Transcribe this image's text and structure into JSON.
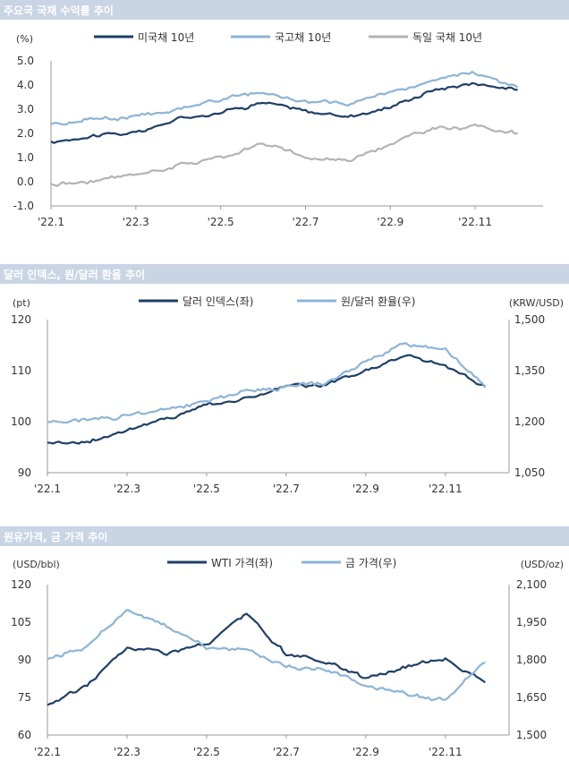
{
  "colors": {
    "dark": "#1f3f66",
    "light": "#8db4d6",
    "gray": "#b3b3b3",
    "titlebar": "#c9d4e4"
  },
  "chart_data": [
    {
      "type": "line",
      "title": "주요국 국채 수익률 추이",
      "ylabel": "(%)",
      "ylim": [
        -1.0,
        5.0
      ],
      "yticks": [
        "5.0",
        "4.0",
        "3.0",
        "2.0",
        "1.0",
        "0.0",
        "-1.0"
      ],
      "xticks": [
        "'22.1",
        "'22.3",
        "'22.5",
        "'22.7",
        "'22.9",
        "'22.11"
      ],
      "x": [
        "'22.1",
        "'22.2",
        "'22.3",
        "'22.4",
        "'22.5",
        "'22.6",
        "'22.7",
        "'22.8",
        "'22.9",
        "'22.10",
        "'22.11",
        "'22.12"
      ],
      "series": [
        {
          "name": "미국채 10년",
          "color": "dark",
          "values": [
            1.6,
            1.95,
            2.0,
            2.6,
            2.9,
            3.3,
            2.9,
            2.7,
            3.1,
            3.8,
            4.1,
            3.8
          ]
        },
        {
          "name": "국고채 10년",
          "color": "light",
          "values": [
            2.4,
            2.6,
            2.7,
            3.0,
            3.4,
            3.7,
            3.3,
            3.2,
            3.7,
            4.2,
            4.5,
            3.9
          ]
        },
        {
          "name": "독일 국채 10년",
          "color": "gray",
          "values": [
            -0.1,
            0.0,
            0.3,
            0.7,
            1.0,
            1.6,
            1.0,
            0.9,
            1.6,
            2.2,
            2.3,
            2.0
          ]
        }
      ]
    },
    {
      "type": "line",
      "title": "달러 인덱스, 원/달러 환율 추이",
      "ylabel_left": "(pt)",
      "ylabel_right": "(KRW/USD)",
      "ylim_left": [
        90,
        120
      ],
      "ylim_right": [
        1050,
        1500
      ],
      "yticks_left": [
        "120",
        "110",
        "100",
        "90"
      ],
      "yticks_right": [
        "1,500",
        "1,350",
        "1,200",
        "1,050"
      ],
      "xticks": [
        "'22.1",
        "'22.3",
        "'22.5",
        "'22.7",
        "'22.9",
        "'22.11"
      ],
      "x": [
        "'22.1",
        "'22.2",
        "'22.3",
        "'22.4",
        "'22.5",
        "'22.6",
        "'22.7",
        "'22.8",
        "'22.9",
        "'22.10",
        "'22.11",
        "'22.12"
      ],
      "series": [
        {
          "name": "달러 인덱스(좌)",
          "axis": "left",
          "color": "dark",
          "values": [
            96,
            96,
            98.5,
            100.5,
            103.5,
            104.5,
            107,
            107,
            110,
            113,
            111,
            107
          ]
        },
        {
          "name": "원/달러 환율(우)",
          "axis": "right",
          "color": "light",
          "values": [
            1200,
            1205,
            1220,
            1235,
            1265,
            1290,
            1305,
            1315,
            1375,
            1430,
            1420,
            1300
          ]
        }
      ]
    },
    {
      "type": "line",
      "title": "원유가격, 금 가격 추이",
      "ylabel_left": "(USD/bbl)",
      "ylabel_right": "(USD/oz)",
      "ylim_left": [
        60,
        120
      ],
      "ylim_right": [
        1500,
        2100
      ],
      "yticks_left": [
        "120",
        "105",
        "90",
        "75",
        "60"
      ],
      "yticks_right": [
        "2,100",
        "1,950",
        "1,800",
        "1,650",
        "1,500"
      ],
      "xticks": [
        "'22.1",
        "'22.3",
        "'22.5",
        "'22.7",
        "'22.9",
        "'22.11"
      ],
      "x": [
        "'22.1",
        "'22.2",
        "'22.3",
        "'22.4",
        "'22.5",
        "'22.6",
        "'22.7",
        "'22.8",
        "'22.9",
        "'22.10",
        "'22.11",
        "'22.12"
      ],
      "series": [
        {
          "name": "WTI 가격(좌)",
          "axis": "left",
          "color": "dark",
          "values": [
            72,
            80,
            95,
            93,
            96,
            108,
            92,
            89,
            83,
            87,
            91,
            81
          ]
        },
        {
          "name": "금 가격(우)",
          "axis": "right",
          "color": "light",
          "values": [
            1800,
            1850,
            2000,
            1930,
            1850,
            1840,
            1770,
            1760,
            1700,
            1660,
            1640,
            1790
          ]
        }
      ]
    }
  ]
}
